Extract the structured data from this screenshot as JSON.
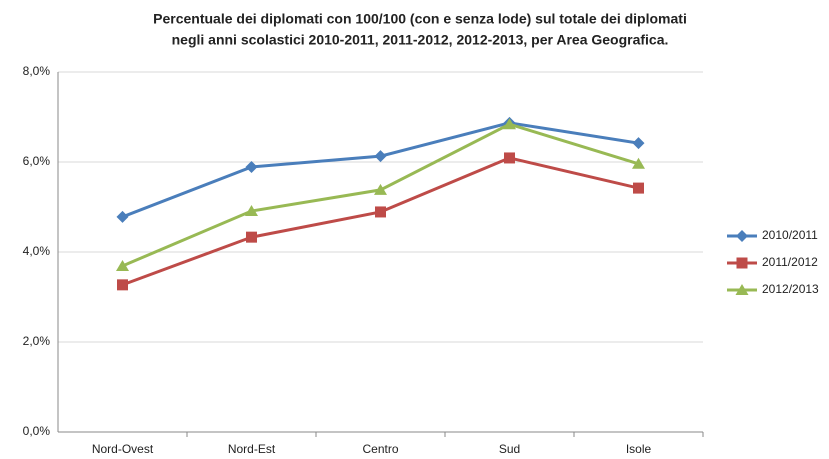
{
  "chart_data": {
    "type": "line",
    "title": [
      "Percentuale dei diplomati con 100/100 (con e senza lode) sul totale dei diplomati",
      "negli anni scolastici 2010-2011, 2011-2012, 2012-2013, per Area Geografica."
    ],
    "categories": [
      "Nord-Ovest",
      "Nord-Est",
      "Centro",
      "Sud",
      "Isole"
    ],
    "series": [
      {
        "name": "2010/2011",
        "color": "#4a7ebb",
        "values": [
          4.78,
          5.89,
          6.13,
          6.87,
          6.42
        ]
      },
      {
        "name": "2011/2012",
        "color": "#be4b48",
        "values": [
          3.27,
          4.33,
          4.89,
          6.09,
          5.42
        ]
      },
      {
        "name": "2012/2013",
        "color": "#98b954",
        "values": [
          3.69,
          4.91,
          5.38,
          6.84,
          5.96
        ]
      }
    ],
    "ylim": [
      0,
      8
    ],
    "yticks": [
      {
        "value": 0,
        "label": "0,0%"
      },
      {
        "value": 2,
        "label": "2,0%"
      },
      {
        "value": 4,
        "label": "4,0%"
      },
      {
        "value": 6,
        "label": "6,0%"
      },
      {
        "value": 8,
        "label": "8,0%"
      }
    ],
    "grid": true,
    "legend": "right"
  }
}
